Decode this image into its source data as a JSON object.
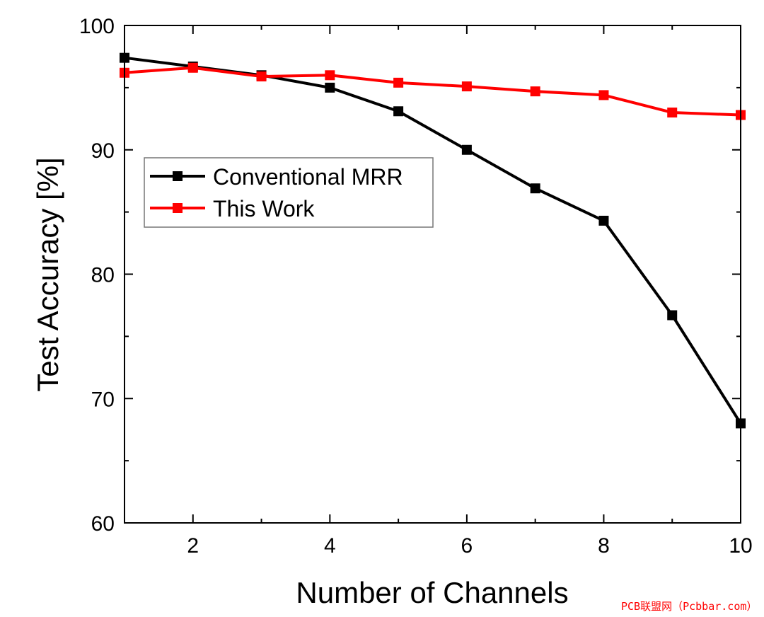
{
  "chart_data": {
    "type": "line",
    "xlabel": "Number of Channels",
    "ylabel": "Test Accuracy [%]",
    "xlim": [
      1,
      10
    ],
    "ylim": [
      60,
      100
    ],
    "xticks": [
      2,
      4,
      6,
      8,
      10
    ],
    "yticks": [
      60,
      70,
      80,
      90,
      100
    ],
    "grid": false,
    "legend_position": "center-left",
    "series": [
      {
        "name": "Conventional MRR",
        "color": "#000000",
        "marker": "square",
        "x": [
          1,
          2,
          3,
          4,
          5,
          6,
          7,
          8,
          9,
          10
        ],
        "y": [
          97.4,
          96.7,
          96.0,
          95.0,
          93.1,
          90.0,
          86.9,
          84.3,
          76.7,
          68.0
        ]
      },
      {
        "name": "This Work",
        "color": "#ff0000",
        "marker": "square",
        "x": [
          1,
          2,
          3,
          4,
          5,
          6,
          7,
          8,
          9,
          10
        ],
        "y": [
          96.2,
          96.6,
          95.9,
          96.0,
          95.4,
          95.1,
          94.7,
          94.4,
          93.0,
          92.8
        ]
      }
    ]
  },
  "watermark": "PCB联盟网（Pcbbar.com）"
}
